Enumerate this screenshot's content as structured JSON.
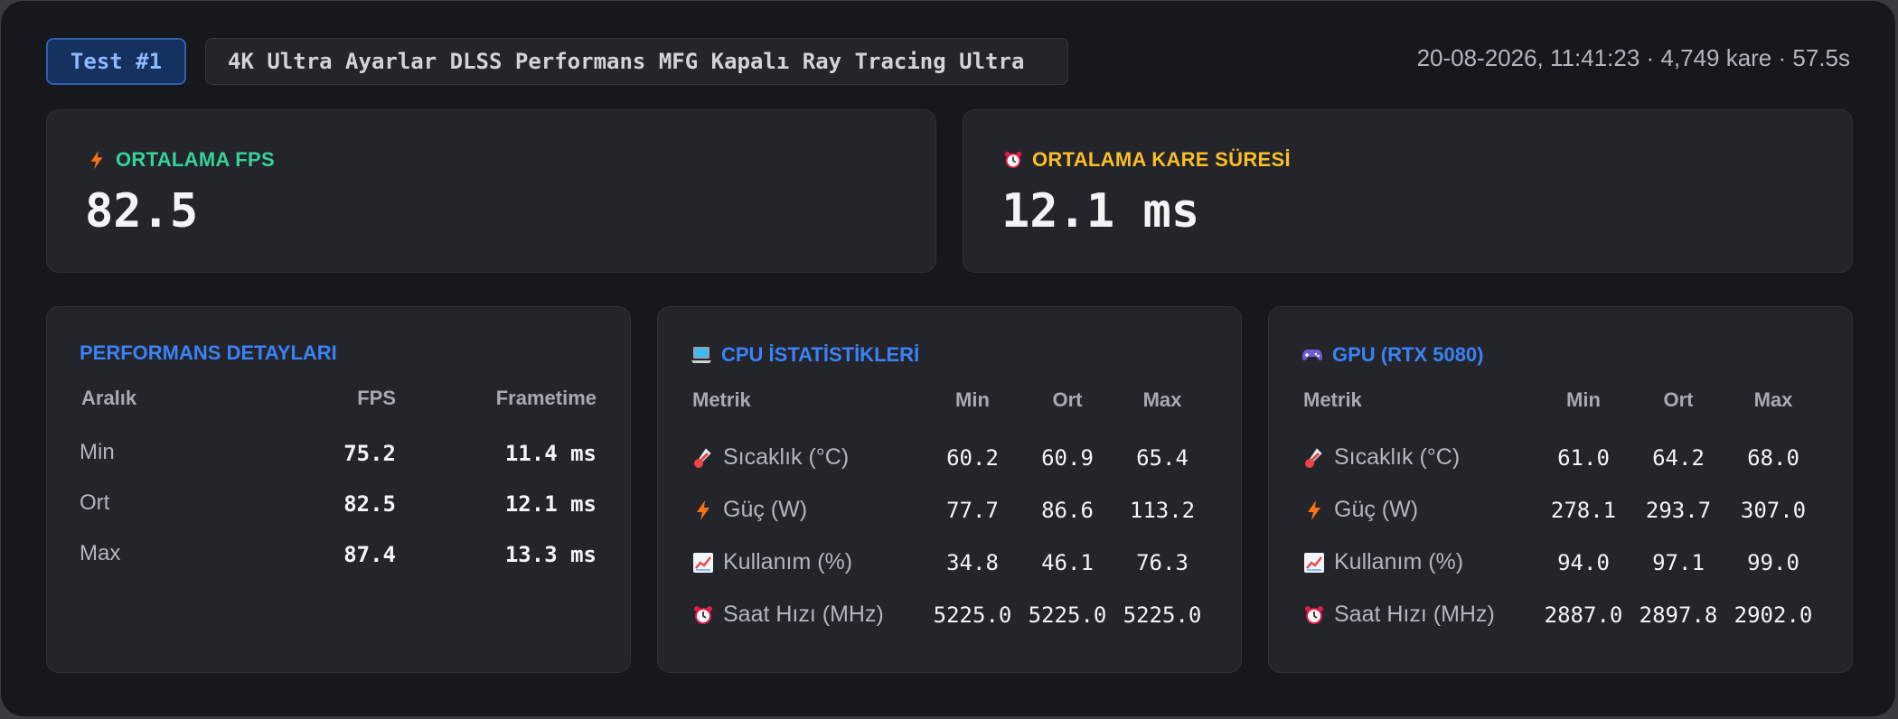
{
  "header": {
    "test_badge": "Test #1",
    "description": "4K Ultra Ayarlar DLSS Performans MFG Kapalı Ray Tracing Ultra",
    "timestamp": "20-08-2026, 11:41:23",
    "separator": " · ",
    "frame_count": "4,749 kare",
    "duration": "57.5s"
  },
  "kpis": {
    "avg_fps": {
      "title": "ORTALAMA FPS",
      "value": "82.5",
      "icon": "lightning-icon",
      "color": "#34d399"
    },
    "avg_frametime": {
      "title": "ORTALAMA KARE SÜRESİ",
      "value": "12.1 ms",
      "icon": "alarm-clock-icon",
      "color": "#fbbf24"
    }
  },
  "performance": {
    "title": "PERFORMANS DETAYLARI",
    "headers": [
      "Aralık",
      "FPS",
      "Frametime"
    ],
    "rows": [
      {
        "label": "Min",
        "fps": "75.2",
        "frametime": "11.4 ms"
      },
      {
        "label": "Ort",
        "fps": "82.5",
        "frametime": "12.1 ms"
      },
      {
        "label": "Max",
        "fps": "87.4",
        "frametime": "13.3 ms"
      }
    ]
  },
  "cpu": {
    "title": "CPU İSTATİSTİKLERİ",
    "icon": "laptop-icon",
    "headers": [
      "Metrik",
      "Min",
      "Ort",
      "Max"
    ],
    "rows": [
      {
        "label": "Sıcaklık (°C)",
        "icon": "thermometer-icon",
        "min": "60.2",
        "avg": "60.9",
        "max": "65.4"
      },
      {
        "label": "Güç (W)",
        "icon": "lightning-icon",
        "min": "77.7",
        "avg": "86.6",
        "max": "113.2"
      },
      {
        "label": "Kullanım (%)",
        "icon": "chart-increasing-icon",
        "min": "34.8",
        "avg": "46.1",
        "max": "76.3"
      },
      {
        "label": "Saat Hızı (MHz)",
        "icon": "alarm-clock-icon",
        "min": "5225.0",
        "avg": "5225.0",
        "max": "5225.0"
      }
    ]
  },
  "gpu": {
    "title": "GPU (RTX 5080)",
    "icon": "gamepad-icon",
    "headers": [
      "Metrik",
      "Min",
      "Ort",
      "Max"
    ],
    "rows": [
      {
        "label": "Sıcaklık (°C)",
        "icon": "thermometer-icon",
        "min": "61.0",
        "avg": "64.2",
        "max": "68.0"
      },
      {
        "label": "Güç (W)",
        "icon": "lightning-icon",
        "min": "278.1",
        "avg": "293.7",
        "max": "307.0"
      },
      {
        "label": "Kullanım (%)",
        "icon": "chart-increasing-icon",
        "min": "94.0",
        "avg": "97.1",
        "max": "99.0"
      },
      {
        "label": "Saat Hızı (MHz)",
        "icon": "alarm-clock-icon",
        "min": "2887.0",
        "avg": "2897.8",
        "max": "2902.0"
      }
    ]
  },
  "colors": {
    "accent_blue": "#3b82f6",
    "fps_green": "#34d399",
    "frametime_yellow": "#fbbf24",
    "background": "#16181d",
    "card": "#23252b"
  }
}
